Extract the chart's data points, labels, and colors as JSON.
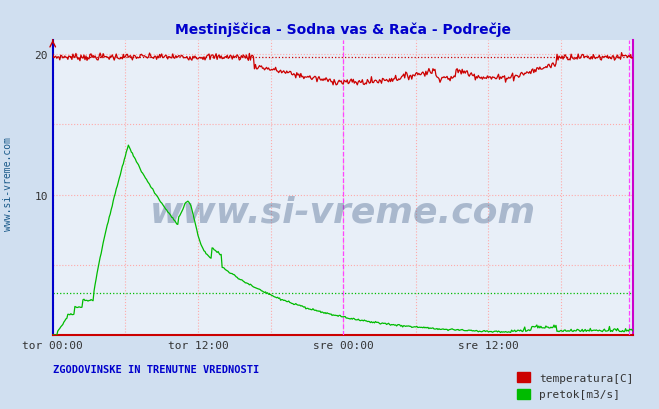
{
  "title": "Mestinjščica - Sodna vas & Rača - Podrečje",
  "title_color": "#0000cc",
  "bg_color": "#d0dff0",
  "plot_bg_color": "#e8eff8",
  "xlabel_ticks": [
    "tor 00:00",
    "tor 12:00",
    "sre 00:00",
    "sre 12:00"
  ],
  "xlabel_tick_positions": [
    0,
    144,
    288,
    432
  ],
  "total_points": 576,
  "ylim": [
    0,
    21
  ],
  "yticks": [
    10,
    20
  ],
  "grid_color": "#ffaaaa",
  "grid_color2": "#ddddff",
  "temp_color": "#cc0000",
  "flow_color": "#00bb00",
  "vline_color": "#ff44ff",
  "vline_solid_color": "#cc0000",
  "vline_positions": [
    288,
    571
  ],
  "hline_flow_y": 3.0,
  "hline_flow_color": "#00bb00",
  "hline_temp_y": 19.8,
  "hline_temp_color": "#cc0000",
  "border_left_color": "#0000cc",
  "border_bottom_color": "#cc0000",
  "border_right_color": "#cc00cc",
  "ylabel_text": "www.si-vreme.com",
  "bottom_title": "ZGODOVINSKE IN TRENUTNE VREDNOSTI",
  "legend_entries": [
    "temperatura[C]",
    "pretok[m3/s]"
  ],
  "legend_colors": [
    "#cc0000",
    "#00bb00"
  ],
  "watermark_text": "www.si-vreme.com",
  "watermark_color": "#1a3a6b",
  "watermark_alpha": 0.3,
  "watermark_fontsize": 26
}
